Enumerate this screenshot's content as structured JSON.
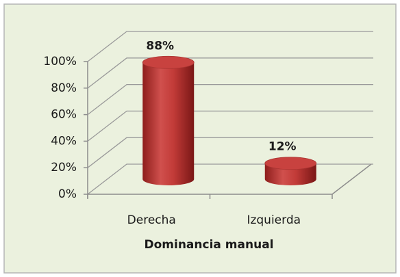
{
  "chart_data": {
    "type": "bar",
    "x_label": "Dominancia manual",
    "categories": [
      "Derecha",
      "Izquierda"
    ],
    "values": [
      88,
      12
    ],
    "value_labels": [
      "88%",
      "12%"
    ],
    "color": "#c0504d",
    "ylim": [
      0,
      100
    ],
    "yticks": [
      {
        "value": 0,
        "label": "0%"
      },
      {
        "value": 20,
        "label": "20%"
      },
      {
        "value": 40,
        "label": "40%"
      },
      {
        "value": 60,
        "label": "60%"
      },
      {
        "value": 80,
        "label": "80%"
      },
      {
        "value": 100,
        "label": "100%"
      }
    ],
    "grid": true
  }
}
